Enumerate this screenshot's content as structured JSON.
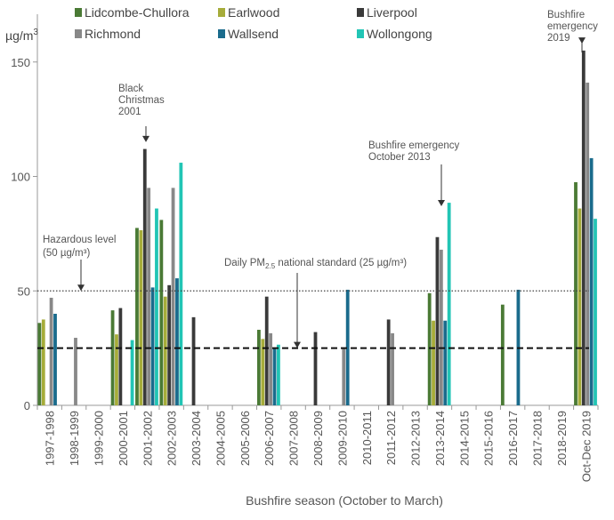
{
  "chart_data": {
    "type": "bar",
    "title": "",
    "ylabel": "µg/m³",
    "ylabel_parts": {
      "base": "µg/m",
      "sup": "3"
    },
    "xlabel": "Bushfire season (October to March)",
    "ylim": [
      0,
      160
    ],
    "yticks": [
      0,
      50,
      100,
      150
    ],
    "categories": [
      "1997-1998",
      "1998-1999",
      "1999-2000",
      "2000-2001",
      "2001-2002",
      "2002-2003",
      "2003-2004",
      "2004-2005",
      "2005-2006",
      "2006-2007",
      "2007-2008",
      "2008-2009",
      "2009-2010",
      "2010-2011",
      "2011-2012",
      "2012-2013",
      "2013-2014",
      "2014-2015",
      "2015-2016",
      "2016-2017",
      "2017-2018",
      "2018-2019",
      "Oct-Dec 2019"
    ],
    "series": [
      {
        "name": "Lidcombe-Chullora",
        "color": "#4a7a35",
        "values": [
          36,
          null,
          null,
          41.5,
          77.5,
          81,
          null,
          null,
          null,
          33,
          null,
          null,
          null,
          null,
          null,
          null,
          49,
          null,
          null,
          44,
          null,
          null,
          97.5
        ]
      },
      {
        "name": "Earlwood",
        "color": "#a6ac3a",
        "values": [
          37.5,
          null,
          null,
          31,
          76.5,
          47.5,
          null,
          null,
          null,
          29,
          null,
          null,
          null,
          null,
          null,
          null,
          37,
          null,
          null,
          null,
          null,
          null,
          86
        ]
      },
      {
        "name": "Liverpool",
        "color": "#3a3a3a",
        "values": [
          null,
          null,
          null,
          42.5,
          112,
          52.5,
          38.5,
          null,
          null,
          47.5,
          null,
          32,
          null,
          null,
          37.5,
          null,
          73.5,
          null,
          null,
          null,
          null,
          null,
          155
        ]
      },
      {
        "name": "Richmond",
        "color": "#888888",
        "values": [
          47,
          29.5,
          null,
          null,
          95,
          95,
          null,
          null,
          null,
          31.5,
          null,
          null,
          25,
          null,
          31.5,
          null,
          68,
          null,
          null,
          null,
          null,
          null,
          141
        ]
      },
      {
        "name": "Wallsend",
        "color": "#1a6b8c",
        "values": [
          40,
          null,
          null,
          null,
          51.5,
          55.5,
          null,
          null,
          null,
          25,
          null,
          null,
          50.5,
          null,
          null,
          null,
          37,
          null,
          null,
          50.5,
          null,
          null,
          108
        ]
      },
      {
        "name": "Wollongong",
        "color": "#22c5b5",
        "values": [
          null,
          null,
          null,
          28.5,
          86,
          106,
          null,
          null,
          null,
          26.5,
          null,
          null,
          null,
          null,
          null,
          null,
          88.5,
          null,
          null,
          null,
          null,
          null,
          81.5
        ]
      }
    ],
    "legend_order": [
      "Lidcombe-Chullora",
      "Earlwood",
      "Liverpool",
      "Richmond",
      "Wallsend",
      "Wollongong"
    ],
    "legend_position": "top",
    "reference_lines": [
      {
        "name": "hazardous-level",
        "value": 50,
        "style": "dotted",
        "color": "#444444",
        "label_lines": [
          "Hazardous level",
          "(50 µg/m³)"
        ]
      },
      {
        "name": "national-standard",
        "value": 25,
        "style": "dashed",
        "color": "#111111",
        "label_parts": [
          "Daily PM",
          "2.5",
          " national standard (25 µg/m³)"
        ]
      }
    ],
    "annotations": [
      {
        "name": "black-christmas",
        "lines": [
          "Black",
          "Christmas",
          "2001"
        ],
        "category": "2001-2002",
        "arrow_to": 115
      },
      {
        "name": "bushfire-2013",
        "lines": [
          "Bushfire emergency",
          "October 2013"
        ],
        "category": "2013-2014",
        "arrow_to": 87
      },
      {
        "name": "bushfire-2019",
        "lines": [
          "Bushfire",
          "emergency",
          "2019"
        ],
        "category": "Oct-Dec 2019",
        "arrow_to": 158
      }
    ],
    "grid": false
  }
}
